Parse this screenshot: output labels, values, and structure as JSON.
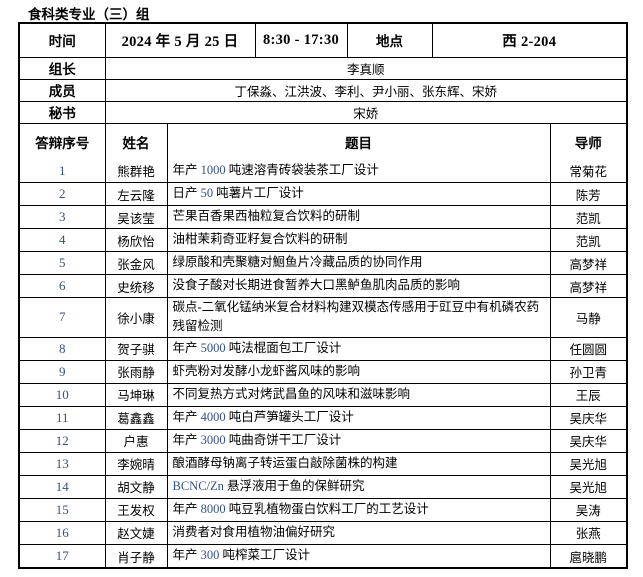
{
  "doc_title": "食科类专业（三）组",
  "colors": {
    "latin_text": "#33518a",
    "border": "#000000"
  },
  "info": {
    "time_label": "时间",
    "date": "2024 年 5 月 25 日",
    "time_range": "8:30 - 17:30",
    "location_label": "地点",
    "location": "西 2-204",
    "leader_label": "组长",
    "leader": "李真顺",
    "members_label": "成员",
    "members": "丁保淼、江洪波、李利、尹小丽、张东辉、宋娇",
    "secretary_label": "秘书",
    "secretary": "宋娇"
  },
  "table": {
    "headers": [
      "答辩序号",
      "姓名",
      "题目",
      "导师"
    ],
    "rows": [
      {
        "no": "1",
        "name": "熊群艳",
        "title": "年产 1000 吨速溶青砖袋装茶工厂设计",
        "advisor": "常菊花"
      },
      {
        "no": "2",
        "name": "左云隆",
        "title": "日产 50 吨薯片工厂设计",
        "advisor": "陈芳"
      },
      {
        "no": "3",
        "name": "吴该莹",
        "title": "芒果百香果西柚粒复合饮料的研制",
        "advisor": "范凯"
      },
      {
        "no": "4",
        "name": "杨欣怡",
        "title": "油柑茉莉奇亚籽复合饮料的研制",
        "advisor": "范凯"
      },
      {
        "no": "5",
        "name": "张金风",
        "title": "绿原酸和壳聚糖对鮰鱼片冷藏品质的协同作用",
        "advisor": "高梦祥"
      },
      {
        "no": "6",
        "name": "史统移",
        "title": "没食子酸对长期进食暂养大口黑鲈鱼肌肉品质的影响",
        "advisor": "高梦祥"
      },
      {
        "no": "7",
        "name": "徐小康",
        "title": "碳点-二氧化锰纳米复合材料构建双模态传感用于豇豆中有机磷农药残留检测",
        "advisor": "马静"
      },
      {
        "no": "8",
        "name": "贺子骐",
        "title": "年产 5000 吨法棍面包工厂设计",
        "advisor": "任圆圆"
      },
      {
        "no": "9",
        "name": "张雨静",
        "title": "虾壳粉对发酵小龙虾酱风味的影响",
        "advisor": "孙卫青"
      },
      {
        "no": "10",
        "name": "马坤琳",
        "title": "不同复热方式对烤武昌鱼的风味和滋味影响",
        "advisor": "王辰"
      },
      {
        "no": "11",
        "name": "葛鑫鑫",
        "title": "年产 4000 吨白芦笋罐头工厂设计",
        "advisor": "吴庆华"
      },
      {
        "no": "12",
        "name": "户惠",
        "title": "年产 3000 吨曲奇饼干工厂设计",
        "advisor": "吴庆华"
      },
      {
        "no": "13",
        "name": "李婉晴",
        "title": "酿酒酵母钠离子转运蛋白敲除菌株的构建",
        "advisor": "吴光旭"
      },
      {
        "no": "14",
        "name": "胡文静",
        "title": "BCNC/Zn 悬浮液用于鱼的保鲜研究",
        "advisor": "吴光旭"
      },
      {
        "no": "15",
        "name": "王发权",
        "title": "年产 8000 吨豆乳植物蛋白饮料工厂的工艺设计",
        "advisor": "吴涛"
      },
      {
        "no": "16",
        "name": "赵文婕",
        "title": "消费者对食用植物油偏好研究",
        "advisor": "张燕"
      },
      {
        "no": "17",
        "name": "肖子静",
        "title": "年产 300 吨榨菜工厂设计",
        "advisor": "扈晓鹏"
      }
    ]
  }
}
